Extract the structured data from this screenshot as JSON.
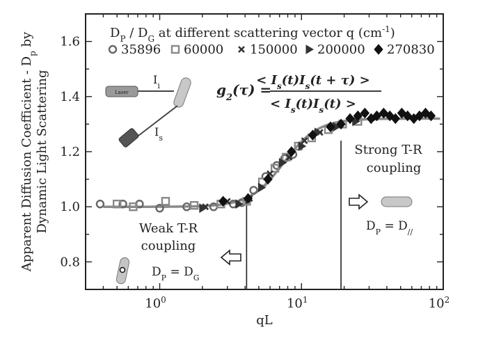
{
  "chart_data": {
    "type": "scatter",
    "xlabel": "qL",
    "ylabel_line1": "Apparent Diffusion Coefficient - D",
    "ylabel_line1_sub": "p",
    "ylabel_line1_end": " by",
    "ylabel_line2": "Dynamic Light Scattering",
    "x_scale": "log",
    "xlim": [
      0.3,
      100
    ],
    "ylim": [
      0.7,
      1.7
    ],
    "x_ticks": [
      {
        "value": 1,
        "base": "10",
        "exp": "0"
      },
      {
        "value": 10,
        "base": "10",
        "exp": "1"
      },
      {
        "value": 100,
        "base": "10",
        "exp": "2"
      }
    ],
    "y_ticks": [
      {
        "value": 0.8,
        "label": "0.8"
      },
      {
        "value": 1.0,
        "label": "1.0"
      },
      {
        "value": 1.2,
        "label": "1.2"
      },
      {
        "value": 1.4,
        "label": "1.4"
      },
      {
        "value": 1.6,
        "label": "1.6"
      }
    ],
    "legend_title": {
      "d": "D",
      "p": "P",
      "slash": " / D",
      "g": "G",
      "mid": " at different scattering vector q (cm",
      "exp": "-1",
      "end": ")"
    },
    "series": [
      {
        "name": "35896",
        "marker": "circle",
        "color": "#666666",
        "points": [
          [
            0.38,
            1.01
          ],
          [
            0.55,
            1.01
          ],
          [
            0.72,
            1.01
          ],
          [
            1.0,
            0.995
          ],
          [
            1.55,
            1.0
          ],
          [
            2.4,
            1.0
          ],
          [
            3.3,
            1.01
          ],
          [
            3.8,
            1.015
          ],
          [
            4.6,
            1.06
          ],
          [
            5.6,
            1.11
          ],
          [
            6.7,
            1.15
          ],
          [
            7.6,
            1.175
          ],
          [
            8.7,
            1.19
          ]
        ]
      },
      {
        "name": "60000",
        "marker": "square",
        "color": "#888888",
        "points": [
          [
            0.5,
            1.01
          ],
          [
            0.65,
            1.0
          ],
          [
            1.1,
            1.02
          ],
          [
            1.75,
            1.005
          ],
          [
            2.7,
            1.01
          ],
          [
            4.1,
            1.02
          ],
          [
            5.3,
            1.09
          ],
          [
            6.5,
            1.14
          ],
          [
            7.8,
            1.18
          ],
          [
            9.5,
            1.22
          ],
          [
            11.8,
            1.25
          ],
          [
            15.5,
            1.28
          ],
          [
            19.5,
            1.3
          ],
          [
            25,
            1.31
          ]
        ]
      },
      {
        "name": "150000",
        "marker": "cross",
        "color": "#333333",
        "points": [
          [
            2.1,
            1.0
          ],
          [
            3.0,
            1.02
          ],
          [
            4.3,
            1.03
          ],
          [
            6.0,
            1.12
          ],
          [
            8.2,
            1.18
          ],
          [
            10.5,
            1.24
          ],
          [
            13.5,
            1.27
          ]
        ]
      },
      {
        "name": "200000",
        "marker": "triangle",
        "color": "#333333",
        "points": [
          [
            2.0,
            0.995
          ],
          [
            3.6,
            1.01
          ],
          [
            5.2,
            1.07
          ],
          [
            7.3,
            1.16
          ],
          [
            10.0,
            1.22
          ],
          [
            13.0,
            1.27
          ],
          [
            17.5,
            1.29
          ],
          [
            24,
            1.31
          ],
          [
            32,
            1.32
          ]
        ]
      },
      {
        "name": "270830",
        "marker": "diamond",
        "color": "#111111",
        "points": [
          [
            2.8,
            1.02
          ],
          [
            4.2,
            1.03
          ],
          [
            5.8,
            1.1
          ],
          [
            8.5,
            1.2
          ],
          [
            12.0,
            1.26
          ],
          [
            16,
            1.29
          ],
          [
            19,
            1.3
          ],
          [
            22,
            1.32
          ],
          [
            25,
            1.33
          ],
          [
            28,
            1.34
          ],
          [
            31,
            1.32
          ],
          [
            34,
            1.33
          ],
          [
            38,
            1.34
          ],
          [
            42,
            1.33
          ],
          [
            46,
            1.32
          ],
          [
            51,
            1.34
          ],
          [
            56,
            1.33
          ],
          [
            62,
            1.32
          ],
          [
            68,
            1.33
          ],
          [
            75,
            1.34
          ],
          [
            82,
            1.33
          ]
        ]
      }
    ],
    "fit_curve": {
      "low": 1.0,
      "high": 1.32,
      "x_mid": 7.5,
      "width": 0.12,
      "x_range": [
        0.4,
        95
      ],
      "color": "#888888"
    },
    "vlines": [
      {
        "x": 4.1,
        "y_top": 1.04
      },
      {
        "x": 19.0,
        "y_top": 1.24
      }
    ],
    "annotations": {
      "weak_line1": "Weak T-R",
      "weak_line2": "coupling",
      "strong_line1": "Strong T-R",
      "strong_line2": "coupling",
      "dp_dg": {
        "d": "D",
        "p": "P",
        "eq": " = D",
        "g": "G"
      },
      "dp_dpar": {
        "d": "D",
        "p": "P",
        "eq": " = D",
        "sub": "//"
      },
      "li": {
        "main": "I",
        "sub": "i"
      },
      "ls": {
        "main": "I",
        "sub": "s"
      },
      "laser_label": "Laser"
    }
  }
}
